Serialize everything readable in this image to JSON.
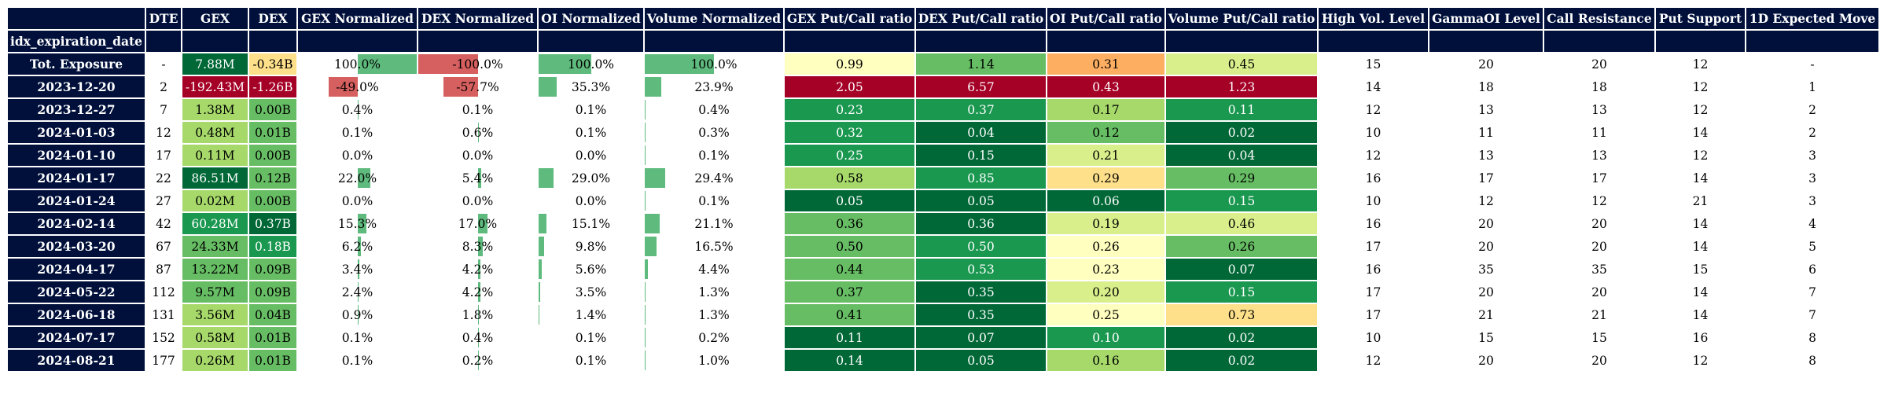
{
  "chart_data": {
    "type": "table",
    "index_label": "idx_expiration_date",
    "columns": [
      "DTE",
      "GEX",
      "DEX",
      "GEX Normalized",
      "DEX Normalized",
      "OI Normalized",
      "Volume Normalized",
      "GEX Put/Call ratio",
      "DEX Put/Call ratio",
      "OI Put/Call ratio",
      "Volume Put/Call ratio",
      "High Vol. Level",
      "GammaOI Level",
      "Call Resistance",
      "Put Support",
      "1D Expected Move"
    ],
    "rows": [
      {
        "label": "Tot. Exposure",
        "dte": "-",
        "gex": "7.88M",
        "dex": "-0.34B",
        "gex_norm": "100.0%",
        "dex_norm": "-100.0%",
        "oi_norm": "100.0%",
        "vol_norm": "100.0%",
        "gex_pc": "0.99",
        "dex_pc": "1.14",
        "oi_pc": "0.31",
        "vol_pc": "0.45",
        "high_vol": "15",
        "gamma_oi": "20",
        "call_res": "20",
        "put_sup": "12",
        "exp_move": "-"
      },
      {
        "label": "2023-12-20",
        "dte": "2",
        "gex": "-192.43M",
        "dex": "-1.26B",
        "gex_norm": "-49.0%",
        "dex_norm": "-57.7%",
        "oi_norm": "35.3%",
        "vol_norm": "23.9%",
        "gex_pc": "2.05",
        "dex_pc": "6.57",
        "oi_pc": "0.43",
        "vol_pc": "1.23",
        "high_vol": "14",
        "gamma_oi": "18",
        "call_res": "18",
        "put_sup": "12",
        "exp_move": "1"
      },
      {
        "label": "2023-12-27",
        "dte": "7",
        "gex": "1.38M",
        "dex": "0.00B",
        "gex_norm": "0.4%",
        "dex_norm": "0.1%",
        "oi_norm": "0.1%",
        "vol_norm": "0.4%",
        "gex_pc": "0.23",
        "dex_pc": "0.37",
        "oi_pc": "0.17",
        "vol_pc": "0.11",
        "high_vol": "12",
        "gamma_oi": "13",
        "call_res": "13",
        "put_sup": "12",
        "exp_move": "2"
      },
      {
        "label": "2024-01-03",
        "dte": "12",
        "gex": "0.48M",
        "dex": "0.01B",
        "gex_norm": "0.1%",
        "dex_norm": "0.6%",
        "oi_norm": "0.1%",
        "vol_norm": "0.3%",
        "gex_pc": "0.32",
        "dex_pc": "0.04",
        "oi_pc": "0.12",
        "vol_pc": "0.02",
        "high_vol": "10",
        "gamma_oi": "11",
        "call_res": "11",
        "put_sup": "14",
        "exp_move": "2"
      },
      {
        "label": "2024-01-10",
        "dte": "17",
        "gex": "0.11M",
        "dex": "0.00B",
        "gex_norm": "0.0%",
        "dex_norm": "0.0%",
        "oi_norm": "0.0%",
        "vol_norm": "0.1%",
        "gex_pc": "0.25",
        "dex_pc": "0.15",
        "oi_pc": "0.21",
        "vol_pc": "0.04",
        "high_vol": "12",
        "gamma_oi": "13",
        "call_res": "13",
        "put_sup": "12",
        "exp_move": "3"
      },
      {
        "label": "2024-01-17",
        "dte": "22",
        "gex": "86.51M",
        "dex": "0.12B",
        "gex_norm": "22.0%",
        "dex_norm": "5.4%",
        "oi_norm": "29.0%",
        "vol_norm": "29.4%",
        "gex_pc": "0.58",
        "dex_pc": "0.85",
        "oi_pc": "0.29",
        "vol_pc": "0.29",
        "high_vol": "16",
        "gamma_oi": "17",
        "call_res": "17",
        "put_sup": "14",
        "exp_move": "3"
      },
      {
        "label": "2024-01-24",
        "dte": "27",
        "gex": "0.02M",
        "dex": "0.00B",
        "gex_norm": "0.0%",
        "dex_norm": "0.0%",
        "oi_norm": "0.0%",
        "vol_norm": "0.1%",
        "gex_pc": "0.05",
        "dex_pc": "0.05",
        "oi_pc": "0.06",
        "vol_pc": "0.15",
        "high_vol": "10",
        "gamma_oi": "12",
        "call_res": "12",
        "put_sup": "21",
        "exp_move": "3"
      },
      {
        "label": "2024-02-14",
        "dte": "42",
        "gex": "60.28M",
        "dex": "0.37B",
        "gex_norm": "15.3%",
        "dex_norm": "17.0%",
        "oi_norm": "15.1%",
        "vol_norm": "21.1%",
        "gex_pc": "0.36",
        "dex_pc": "0.36",
        "oi_pc": "0.19",
        "vol_pc": "0.46",
        "high_vol": "16",
        "gamma_oi": "20",
        "call_res": "20",
        "put_sup": "14",
        "exp_move": "4"
      },
      {
        "label": "2024-03-20",
        "dte": "67",
        "gex": "24.33M",
        "dex": "0.18B",
        "gex_norm": "6.2%",
        "dex_norm": "8.3%",
        "oi_norm": "9.8%",
        "vol_norm": "16.5%",
        "gex_pc": "0.50",
        "dex_pc": "0.50",
        "oi_pc": "0.26",
        "vol_pc": "0.26",
        "high_vol": "17",
        "gamma_oi": "20",
        "call_res": "20",
        "put_sup": "14",
        "exp_move": "5"
      },
      {
        "label": "2024-04-17",
        "dte": "87",
        "gex": "13.22M",
        "dex": "0.09B",
        "gex_norm": "3.4%",
        "dex_norm": "4.2%",
        "oi_norm": "5.6%",
        "vol_norm": "4.4%",
        "gex_pc": "0.44",
        "dex_pc": "0.53",
        "oi_pc": "0.23",
        "vol_pc": "0.07",
        "high_vol": "16",
        "gamma_oi": "35",
        "call_res": "35",
        "put_sup": "15",
        "exp_move": "6"
      },
      {
        "label": "2024-05-22",
        "dte": "112",
        "gex": "9.57M",
        "dex": "0.09B",
        "gex_norm": "2.4%",
        "dex_norm": "4.2%",
        "oi_norm": "3.5%",
        "vol_norm": "1.3%",
        "gex_pc": "0.37",
        "dex_pc": "0.35",
        "oi_pc": "0.20",
        "vol_pc": "0.15",
        "high_vol": "17",
        "gamma_oi": "20",
        "call_res": "20",
        "put_sup": "14",
        "exp_move": "7"
      },
      {
        "label": "2024-06-18",
        "dte": "131",
        "gex": "3.56M",
        "dex": "0.04B",
        "gex_norm": "0.9%",
        "dex_norm": "1.8%",
        "oi_norm": "1.4%",
        "vol_norm": "1.3%",
        "gex_pc": "0.41",
        "dex_pc": "0.35",
        "oi_pc": "0.25",
        "vol_pc": "0.73",
        "high_vol": "17",
        "gamma_oi": "21",
        "call_res": "21",
        "put_sup": "14",
        "exp_move": "7"
      },
      {
        "label": "2024-07-17",
        "dte": "152",
        "gex": "0.58M",
        "dex": "0.01B",
        "gex_norm": "0.1%",
        "dex_norm": "0.4%",
        "oi_norm": "0.1%",
        "vol_norm": "0.2%",
        "gex_pc": "0.11",
        "dex_pc": "0.07",
        "oi_pc": "0.10",
        "vol_pc": "0.02",
        "high_vol": "10",
        "gamma_oi": "15",
        "call_res": "15",
        "put_sup": "16",
        "exp_move": "8"
      },
      {
        "label": "2024-08-21",
        "dte": "177",
        "gex": "0.26M",
        "dex": "0.01B",
        "gex_norm": "0.1%",
        "dex_norm": "0.2%",
        "oi_norm": "0.1%",
        "vol_norm": "1.0%",
        "gex_pc": "0.14",
        "dex_pc": "0.05",
        "oi_pc": "0.16",
        "vol_pc": "0.02",
        "high_vol": "12",
        "gamma_oi": "20",
        "call_res": "20",
        "put_sup": "12",
        "exp_move": "8"
      }
    ]
  },
  "colors": {
    "header_bg": "#00103b",
    "header_text": "#ffffff",
    "bar_positive": "#5fba7d",
    "bar_negative": "#d65f5f",
    "gex": [
      "#006837",
      "#1a9850",
      "#66bd63",
      "#a6d96a",
      "#d9ef8b",
      "#fee08b",
      "#fdae61",
      "#f46d43",
      "#d73027",
      "#a50026"
    ],
    "dex": [
      "#006837",
      "#1a9850",
      "#66bd63",
      "#a6d96a",
      "#d9ef8b",
      "#f7fcb9",
      "#fee08b",
      "#fdae61",
      "#f46d43",
      "#d73027",
      "#a50026"
    ],
    "ratio": [
      "#006837",
      "#1a9850",
      "#66bd63",
      "#a6d96a",
      "#d9ef8b",
      "#ffffbf",
      "#fee08b",
      "#fdae61",
      "#f46d43",
      "#d73027",
      "#a50026"
    ]
  }
}
